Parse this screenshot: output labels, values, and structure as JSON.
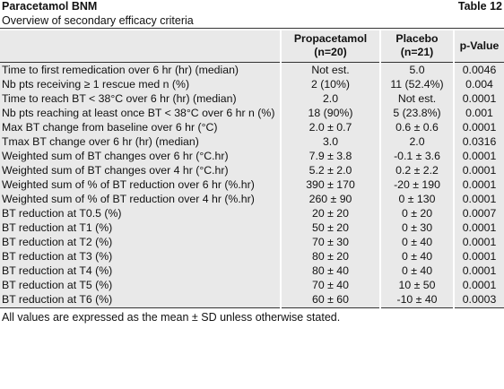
{
  "header": {
    "title": "Paracetamol BNM",
    "table_label": "Table 12",
    "subtitle": "Overview of secondary efficacy criteria"
  },
  "table": {
    "columns": [
      {
        "name": "",
        "n": ""
      },
      {
        "name": "Propacetamol",
        "n": "(n=20)"
      },
      {
        "name": "Placebo",
        "n": "(n=21)"
      },
      {
        "name": "p-Value",
        "n": ""
      }
    ],
    "rows": [
      [
        "Time to first remedication over 6 hr (hr) (median)",
        "Not est.",
        "5.0",
        "0.0046"
      ],
      [
        "Nb pts receiving ≥ 1 rescue med n (%)",
        "2 (10%)",
        "11 (52.4%)",
        "0.004"
      ],
      [
        "Time to reach BT < 38°C over 6 hr (hr) (median)",
        "2.0",
        "Not est.",
        "0.0001"
      ],
      [
        "Nb pts reaching at least once BT < 38°C over 6 hr n (%)",
        "18 (90%)",
        "5 (23.8%)",
        "0.001"
      ],
      [
        "Max BT change from baseline over 6 hr (°C)",
        "2.0 ± 0.7",
        "0.6 ± 0.6",
        "0.0001"
      ],
      [
        "Tmax BT change over 6 hr (hr) (median)",
        "3.0",
        "2.0",
        "0.0316"
      ],
      [
        "Weighted sum of BT changes over 6 hr (°C.hr)",
        "7.9 ± 3.8",
        "-0.1 ± 3.6",
        "0.0001"
      ],
      [
        "Weighted sum of BT changes over 4 hr (°C.hr)",
        "5.2 ± 2.0",
        "0.2 ± 2.2",
        "0.0001"
      ],
      [
        "Weighted sum of % of BT reduction over 6 hr (%.hr)",
        "390 ± 170",
        "-20 ± 190",
        "0.0001"
      ],
      [
        "Weighted sum of % of BT reduction over 4 hr (%.hr)",
        "260 ± 90",
        "0 ± 130",
        "0.0001"
      ],
      [
        "BT reduction at T0.5 (%)",
        "20 ± 20",
        "0 ± 20",
        "0.0007"
      ],
      [
        "BT reduction at T1 (%)",
        "50 ± 20",
        "0 ± 30",
        "0.0001"
      ],
      [
        "BT reduction at T2 (%)",
        "70 ± 30",
        "0 ± 40",
        "0.0001"
      ],
      [
        "BT reduction at T3 (%)",
        "80 ± 20",
        "0 ± 40",
        "0.0001"
      ],
      [
        "BT reduction at T4 (%)",
        "80 ± 40",
        "0 ± 40",
        "0.0001"
      ],
      [
        "BT reduction at T5 (%)",
        "70 ± 40",
        "10 ± 50",
        "0.0001"
      ],
      [
        "BT reduction at T6 (%)",
        "60 ± 60",
        "-10 ± 40",
        "0.0003"
      ]
    ]
  },
  "footnote": "All values are expressed as the mean ± SD unless otherwise stated."
}
